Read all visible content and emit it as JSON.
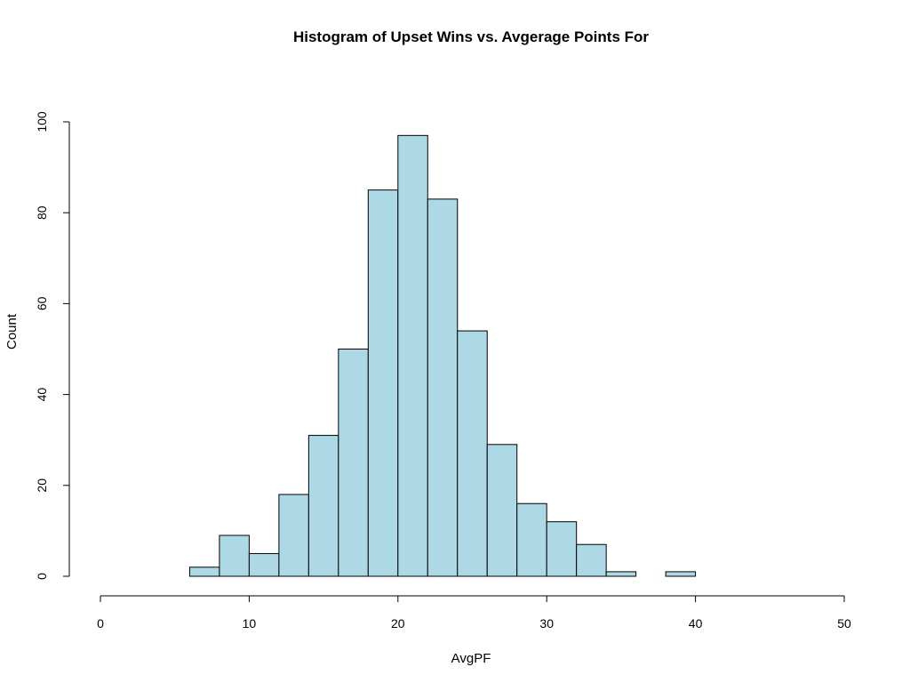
{
  "chart_data": {
    "type": "bar",
    "title": "Histogram of Upset Wins vs. Avgerage Points For",
    "xlabel": "AvgPF",
    "ylabel": "Count",
    "xlim": [
      0,
      50
    ],
    "ylim": [
      0,
      100
    ],
    "x_ticks": [
      0,
      10,
      20,
      30,
      40,
      50
    ],
    "y_ticks": [
      0,
      20,
      40,
      60,
      80,
      100
    ],
    "bin_width": 2,
    "bins": [
      {
        "start": 6,
        "end": 8,
        "count": 2
      },
      {
        "start": 8,
        "end": 10,
        "count": 9
      },
      {
        "start": 10,
        "end": 12,
        "count": 5
      },
      {
        "start": 12,
        "end": 14,
        "count": 18
      },
      {
        "start": 14,
        "end": 16,
        "count": 31
      },
      {
        "start": 16,
        "end": 18,
        "count": 50
      },
      {
        "start": 18,
        "end": 20,
        "count": 85
      },
      {
        "start": 20,
        "end": 22,
        "count": 97
      },
      {
        "start": 22,
        "end": 24,
        "count": 83
      },
      {
        "start": 24,
        "end": 26,
        "count": 54
      },
      {
        "start": 26,
        "end": 28,
        "count": 29
      },
      {
        "start": 28,
        "end": 30,
        "count": 16
      },
      {
        "start": 30,
        "end": 32,
        "count": 12
      },
      {
        "start": 32,
        "end": 34,
        "count": 7
      },
      {
        "start": 34,
        "end": 36,
        "count": 1
      },
      {
        "start": 36,
        "end": 38,
        "count": 0
      },
      {
        "start": 38,
        "end": 40,
        "count": 1
      }
    ],
    "bar_color": "#add8e6",
    "bar_border_color": "#000000",
    "grid": false,
    "legend": false
  }
}
